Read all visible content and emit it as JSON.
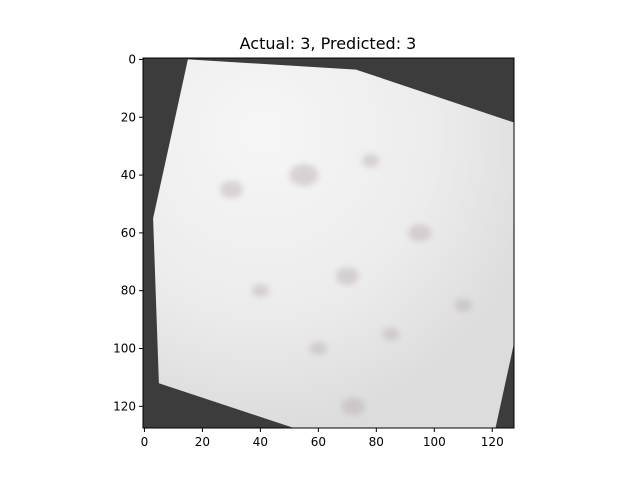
{
  "chart_data": {
    "type": "image",
    "title": "Actual: 3, Predicted: 3",
    "xlabel": "",
    "ylabel": "",
    "xlim": [
      -0.5,
      127.5
    ],
    "ylim": [
      127.5,
      -0.5
    ],
    "xticks": [
      0,
      20,
      40,
      60,
      80,
      100,
      120
    ],
    "yticks": [
      0,
      20,
      40,
      60,
      80,
      100,
      120
    ],
    "grid": false,
    "actual_label": 3,
    "predicted_label": 3,
    "image_content": "rotated light grey skin/fur texture patch on dark grey background",
    "colors": {
      "background_fill": "#3c3c3c",
      "patch_fill": "#ececec",
      "patch_shade": "#d9d5d7",
      "spot": "#b9aab3"
    },
    "patch_polygon": [
      {
        "x": 15,
        "y": 0
      },
      {
        "x": 73,
        "y": 3.5
      },
      {
        "x": 128,
        "y": 22
      },
      {
        "x": 128,
        "y": 96
      },
      {
        "x": 121,
        "y": 128
      },
      {
        "x": 53,
        "y": 128
      },
      {
        "x": 5,
        "y": 112
      },
      {
        "x": 3,
        "y": 55
      }
    ],
    "spots": [
      {
        "x": 30,
        "y": 45,
        "r": 4
      },
      {
        "x": 55,
        "y": 40,
        "r": 5
      },
      {
        "x": 70,
        "y": 75,
        "r": 4
      },
      {
        "x": 72,
        "y": 120,
        "r": 4
      },
      {
        "x": 60,
        "y": 100,
        "r": 3
      },
      {
        "x": 95,
        "y": 60,
        "r": 4
      },
      {
        "x": 85,
        "y": 95,
        "r": 3
      },
      {
        "x": 110,
        "y": 85,
        "r": 3
      },
      {
        "x": 40,
        "y": 80,
        "r": 3
      },
      {
        "x": 78,
        "y": 35,
        "r": 3
      }
    ]
  }
}
